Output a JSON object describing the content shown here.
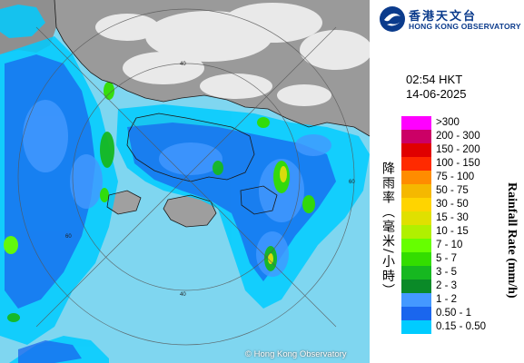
{
  "logo": {
    "name_cn": "香港天文台",
    "name_en": "HONG KONG OBSERVATORY",
    "icon": "hko-logo-icon",
    "color": "#0b3b8c"
  },
  "timestamp": {
    "time": "02:54 HKT",
    "date": "14-06-2025"
  },
  "legend": {
    "title_cn": "降雨率（毫米/小時）",
    "title_en": "Rainfall Rate (mm/h)",
    "items": [
      {
        "label": ">300",
        "color": "#ff00ff"
      },
      {
        "label": "200 - 300",
        "color": "#cc0066"
      },
      {
        "label": "150 - 200",
        "color": "#e00000"
      },
      {
        "label": "100 - 150",
        "color": "#ff2a00"
      },
      {
        "label": "75 - 100",
        "color": "#ff8c00"
      },
      {
        "label": "50 - 75",
        "color": "#f5b800"
      },
      {
        "label": "30 - 50",
        "color": "#ffd400"
      },
      {
        "label": "15 - 30",
        "color": "#e0e000"
      },
      {
        "label": "10 - 15",
        "color": "#b0f000"
      },
      {
        "label": "7 - 10",
        "color": "#66ff00"
      },
      {
        "label": "5 - 7",
        "color": "#33dd00"
      },
      {
        "label": "3 - 5",
        "color": "#16b820"
      },
      {
        "label": "2 - 3",
        "color": "#0a8a28"
      },
      {
        "label": "1 - 2",
        "color": "#4499ff"
      },
      {
        "label": "0.50 - 1",
        "color": "#1a66ee"
      },
      {
        "label": "0.15 - 0.50",
        "color": "#00ccff"
      }
    ]
  },
  "range_rings": {
    "labels": [
      "40",
      "60",
      "40",
      "60"
    ]
  },
  "copyright": "© Hong Kong Observatory",
  "map": {
    "sea_color": "#7fd6f0",
    "land_color": "#9a9a9a",
    "cloud_color": "#f2f2f2"
  }
}
